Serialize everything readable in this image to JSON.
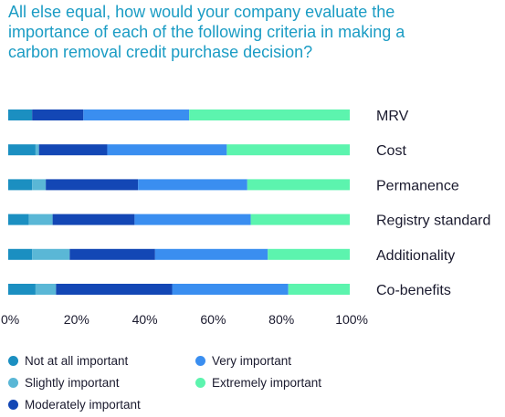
{
  "title_lines": [
    "All else equal, how would your company evaluate the",
    "importance of each of the following criteria in making a",
    "carbon removal credit purchase decision?"
  ],
  "colors": {
    "title": "#1b9cc4",
    "Not at all important": "#1b8fc1",
    "Slightly important": "#5ab7d6",
    "Moderately important": "#1347b5",
    "Very important": "#3a8ef0",
    "Extremely important": "#5cf4ae"
  },
  "chart_data": {
    "type": "bar",
    "orientation": "horizontal",
    "stacked": "percent",
    "categories": [
      "MRV",
      "Cost",
      "Permanence",
      "Registry standard",
      "Additionality",
      "Co-benefits"
    ],
    "series": [
      {
        "name": "Not at all important",
        "values": [
          7,
          8,
          7,
          6,
          7,
          8
        ]
      },
      {
        "name": "Slightly important",
        "values": [
          0,
          1,
          4,
          7,
          11,
          6
        ]
      },
      {
        "name": "Moderately important",
        "values": [
          15,
          20,
          27,
          24,
          25,
          34
        ]
      },
      {
        "name": "Very important",
        "values": [
          31,
          35,
          32,
          34,
          33,
          34
        ]
      },
      {
        "name": "Extremely important",
        "values": [
          47,
          36,
          30,
          29,
          24,
          18
        ]
      }
    ],
    "xlim": [
      0,
      100
    ],
    "x_ticks": [
      "0%",
      "20%",
      "40%",
      "60%",
      "80%",
      "100%"
    ],
    "legend": {
      "position": "bottom",
      "columns": [
        [
          "Not at all important",
          "Slightly important",
          "Moderately important"
        ],
        [
          "Very important",
          "Extremely important"
        ]
      ]
    }
  }
}
